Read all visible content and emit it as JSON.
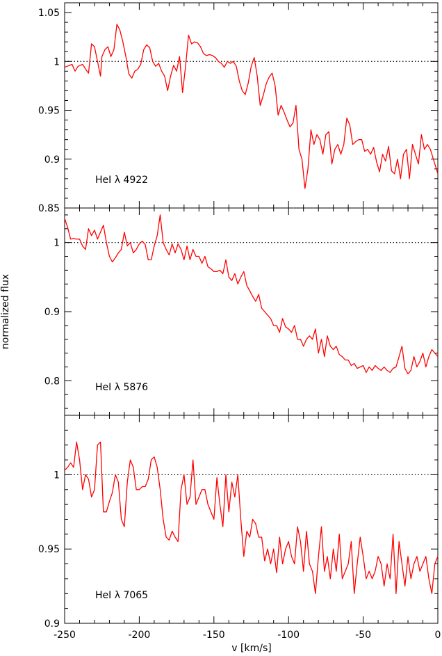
{
  "figure": {
    "ylabel": "normalized flux",
    "xlabel": "v  [km/s]"
  },
  "chart_data": [
    {
      "type": "line",
      "label": "HeI λ 4922",
      "xlim": [
        -250,
        0
      ],
      "ylim": [
        0.85,
        1.06
      ],
      "x_ticks": [
        -250,
        -200,
        -150,
        -100,
        -50,
        0
      ],
      "y_ticks": [
        0.85,
        0.9,
        0.95,
        1,
        1.05
      ],
      "y_tick_labels": [
        "0.85",
        "0.9",
        "0.95",
        "1",
        "1.05"
      ],
      "reference_line": 1,
      "color": "#ff0000",
      "x": [
        -250,
        -245,
        -243,
        -241,
        -238,
        -235,
        -234,
        -232,
        -230,
        -228,
        -226,
        -225,
        -223,
        -221,
        -219,
        -217,
        -215,
        -213,
        -211,
        -209,
        -207,
        -205,
        -203,
        -201,
        -199,
        -197,
        -195,
        -193,
        -191,
        -189,
        -187,
        -185,
        -183,
        -181,
        -179,
        -177,
        -175,
        -173,
        -171,
        -169,
        -167,
        -165,
        -163,
        -161,
        -159,
        -157,
        -155,
        -153,
        -151,
        -149,
        -147,
        -145,
        -143,
        -141,
        -139,
        -137,
        -135,
        -133,
        -131,
        -129,
        -127,
        -125,
        -123,
        -121,
        -119,
        -117,
        -115,
        -113,
        -111,
        -109,
        -107,
        -105,
        -103,
        -101,
        -99,
        -97,
        -95,
        -93,
        -91,
        -89,
        -87,
        -85,
        -83,
        -81,
        -79,
        -77,
        -75,
        -73,
        -71,
        -69,
        -67,
        -65,
        -63,
        -61,
        -59,
        -57,
        -55,
        -53,
        -51,
        -49,
        -47,
        -45,
        -43,
        -41,
        -39,
        -37,
        -35,
        -33,
        -31,
        -29,
        -27,
        -25,
        -23,
        -21,
        -19,
        -17,
        -15,
        -13,
        -11,
        -9,
        -7,
        -5,
        -3,
        -1,
        0
      ],
      "y": [
        0.994,
        0.997,
        0.99,
        0.995,
        0.997,
        0.99,
        0.988,
        1.018,
        1.015,
        1.0,
        0.985,
        1.005,
        1.012,
        1.015,
        1.005,
        1.012,
        1.038,
        1.032,
        1.02,
        1.005,
        0.987,
        0.983,
        0.99,
        0.992,
        0.997,
        1.012,
        1.017,
        1.014,
        1.0,
        0.995,
        0.998,
        0.99,
        0.985,
        0.97,
        0.985,
        0.996,
        0.99,
        1.005,
        0.968,
        0.995,
        1.027,
        1.018,
        1.02,
        1.019,
        1.015,
        1.008,
        1.006,
        1.007,
        1.006,
        1.004,
        1.0,
        0.998,
        0.994,
        1.0,
        0.998,
        1.0,
        0.995,
        0.98,
        0.97,
        0.966,
        0.978,
        0.995,
        1.004,
        0.985,
        0.955,
        0.965,
        0.977,
        0.984,
        0.988,
        0.975,
        0.945,
        0.955,
        0.948,
        0.94,
        0.933,
        0.937,
        0.955,
        0.91,
        0.9,
        0.87,
        0.89,
        0.93,
        0.915,
        0.925,
        0.92,
        0.905,
        0.925,
        0.928,
        0.895,
        0.91,
        0.915,
        0.905,
        0.915,
        0.942,
        0.935,
        0.915,
        0.918,
        0.92,
        0.92,
        0.908,
        0.91,
        0.905,
        0.912,
        0.897,
        0.887,
        0.905,
        0.898,
        0.913,
        0.888,
        0.885,
        0.9,
        0.88,
        0.905,
        0.91,
        0.88,
        0.915,
        0.905,
        0.895,
        0.925,
        0.91,
        0.915,
        0.91,
        0.9,
        0.89,
        0.885
      ]
    },
    {
      "type": "line",
      "label": "HeI λ 5876",
      "xlim": [
        -250,
        0
      ],
      "ylim": [
        0.75,
        1.05
      ],
      "x_ticks": [
        -250,
        -200,
        -150,
        -100,
        -50,
        0
      ],
      "y_ticks": [
        0.8,
        0.9,
        1
      ],
      "y_tick_labels": [
        "0.8",
        "0.9",
        "1"
      ],
      "reference_line": 1,
      "color": "#ff0000",
      "x": [
        -250,
        -248,
        -246,
        -244,
        -242,
        -240,
        -238,
        -236,
        -234,
        -232,
        -230,
        -228,
        -226,
        -224,
        -222,
        -220,
        -218,
        -216,
        -214,
        -212,
        -210,
        -208,
        -206,
        -204,
        -202,
        -200,
        -198,
        -196,
        -194,
        -192,
        -190,
        -188,
        -186,
        -184,
        -182,
        -180,
        -178,
        -176,
        -174,
        -172,
        -170,
        -168,
        -166,
        -164,
        -162,
        -160,
        -158,
        -156,
        -154,
        -152,
        -150,
        -148,
        -146,
        -144,
        -142,
        -140,
        -138,
        -136,
        -134,
        -132,
        -130,
        -128,
        -126,
        -124,
        -122,
        -120,
        -118,
        -116,
        -114,
        -112,
        -110,
        -108,
        -106,
        -104,
        -102,
        -100,
        -98,
        -96,
        -94,
        -92,
        -90,
        -88,
        -86,
        -84,
        -82,
        -80,
        -78,
        -76,
        -74,
        -72,
        -70,
        -68,
        -66,
        -64,
        -62,
        -60,
        -58,
        -56,
        -54,
        -52,
        -50,
        -48,
        -46,
        -44,
        -42,
        -40,
        -38,
        -36,
        -34,
        -32,
        -30,
        -28,
        -26,
        -24,
        -22,
        -20,
        -18,
        -16,
        -14,
        -12,
        -10,
        -8,
        -6,
        -4,
        -2,
        0
      ],
      "y": [
        1.035,
        1.022,
        1.005,
        1.006,
        1.005,
        1.005,
        0.995,
        0.99,
        1.02,
        1.01,
        1.018,
        1.005,
        1.015,
        1.025,
        1.0,
        0.98,
        0.972,
        0.978,
        0.985,
        0.99,
        1.015,
        0.995,
        1.0,
        0.985,
        0.99,
        0.998,
        1.002,
        0.997,
        0.975,
        0.975,
        0.995,
        1.01,
        1.04,
        1.0,
        0.99,
        0.982,
        0.998,
        0.985,
        0.998,
        0.99,
        0.975,
        0.995,
        0.975,
        0.99,
        0.98,
        0.98,
        0.97,
        0.98,
        0.965,
        0.962,
        0.958,
        0.958,
        0.96,
        0.955,
        0.975,
        0.95,
        0.945,
        0.955,
        0.94,
        0.95,
        0.958,
        0.938,
        0.93,
        0.922,
        0.915,
        0.925,
        0.905,
        0.9,
        0.895,
        0.89,
        0.88,
        0.88,
        0.87,
        0.89,
        0.878,
        0.875,
        0.87,
        0.88,
        0.86,
        0.86,
        0.85,
        0.86,
        0.865,
        0.86,
        0.875,
        0.84,
        0.86,
        0.835,
        0.865,
        0.85,
        0.845,
        0.85,
        0.838,
        0.835,
        0.83,
        0.83,
        0.822,
        0.825,
        0.818,
        0.82,
        0.822,
        0.812,
        0.82,
        0.815,
        0.822,
        0.818,
        0.815,
        0.82,
        0.815,
        0.812,
        0.818,
        0.82,
        0.835,
        0.85,
        0.818,
        0.81,
        0.815,
        0.835,
        0.82,
        0.828,
        0.84,
        0.82,
        0.835,
        0.845,
        0.84,
        0.835
      ]
    },
    {
      "type": "line",
      "label": "HeI λ 7065",
      "xlim": [
        -250,
        0
      ],
      "ylim": [
        0.9,
        1.04
      ],
      "x_ticks": [
        -250,
        -200,
        -150,
        -100,
        -50,
        0
      ],
      "y_ticks": [
        0.9,
        0.95,
        1
      ],
      "y_tick_labels": [
        "0.9",
        "0.95",
        "1"
      ],
      "reference_line": 1,
      "color": "#ff0000",
      "x": [
        -250,
        -248,
        -246,
        -244,
        -242,
        -240,
        -238,
        -236,
        -234,
        -232,
        -230,
        -228,
        -226,
        -224,
        -222,
        -220,
        -218,
        -216,
        -214,
        -212,
        -210,
        -208,
        -206,
        -204,
        -202,
        -200,
        -198,
        -196,
        -194,
        -192,
        -190,
        -188,
        -186,
        -184,
        -182,
        -180,
        -178,
        -176,
        -174,
        -172,
        -170,
        -168,
        -166,
        -164,
        -162,
        -160,
        -158,
        -156,
        -154,
        -152,
        -150,
        -148,
        -146,
        -144,
        -142,
        -140,
        -138,
        -136,
        -134,
        -132,
        -130,
        -128,
        -126,
        -124,
        -122,
        -120,
        -118,
        -116,
        -114,
        -112,
        -110,
        -108,
        -106,
        -104,
        -102,
        -100,
        -98,
        -96,
        -94,
        -92,
        -90,
        -88,
        -86,
        -84,
        -82,
        -80,
        -78,
        -76,
        -74,
        -72,
        -70,
        -68,
        -66,
        -64,
        -62,
        -60,
        -58,
        -56,
        -54,
        -52,
        -50,
        -48,
        -46,
        -44,
        -42,
        -40,
        -38,
        -36,
        -34,
        -32,
        -30,
        -28,
        -26,
        -24,
        -22,
        -20,
        -18,
        -16,
        -14,
        -12,
        -10,
        -8,
        -6,
        -4,
        -2,
        0
      ],
      "y": [
        1.003,
        1.005,
        1.008,
        1.005,
        1.022,
        1.01,
        0.99,
        1.0,
        0.997,
        0.985,
        0.99,
        1.02,
        1.022,
        0.975,
        0.975,
        0.982,
        0.988,
        1.0,
        0.995,
        0.97,
        0.965,
        0.995,
        1.01,
        1.005,
        0.99,
        0.99,
        0.992,
        0.992,
        0.997,
        1.01,
        1.012,
        1.005,
        0.99,
        0.97,
        0.958,
        0.956,
        0.962,
        0.958,
        0.955,
        0.99,
        1.0,
        0.98,
        0.985,
        1.01,
        0.98,
        0.985,
        0.99,
        0.99,
        0.98,
        0.975,
        0.97,
        0.998,
        0.98,
        0.965,
        1.0,
        0.975,
        0.995,
        0.985,
        1.0,
        0.97,
        0.945,
        0.962,
        0.958,
        0.97,
        0.967,
        0.958,
        0.958,
        0.942,
        0.95,
        0.94,
        0.95,
        0.934,
        0.958,
        0.94,
        0.95,
        0.955,
        0.945,
        0.94,
        0.965,
        0.955,
        0.935,
        0.962,
        0.94,
        0.935,
        0.92,
        0.945,
        0.965,
        0.935,
        0.945,
        0.93,
        0.95,
        0.935,
        0.96,
        0.93,
        0.935,
        0.94,
        0.955,
        0.92,
        0.94,
        0.958,
        0.945,
        0.93,
        0.935,
        0.93,
        0.935,
        0.945,
        0.94,
        0.925,
        0.94,
        0.93,
        0.96,
        0.92,
        0.955,
        0.94,
        0.925,
        0.945,
        0.93,
        0.94,
        0.945,
        0.935,
        0.94,
        0.945,
        0.93,
        0.92,
        0.94,
        0.945
      ]
    }
  ]
}
